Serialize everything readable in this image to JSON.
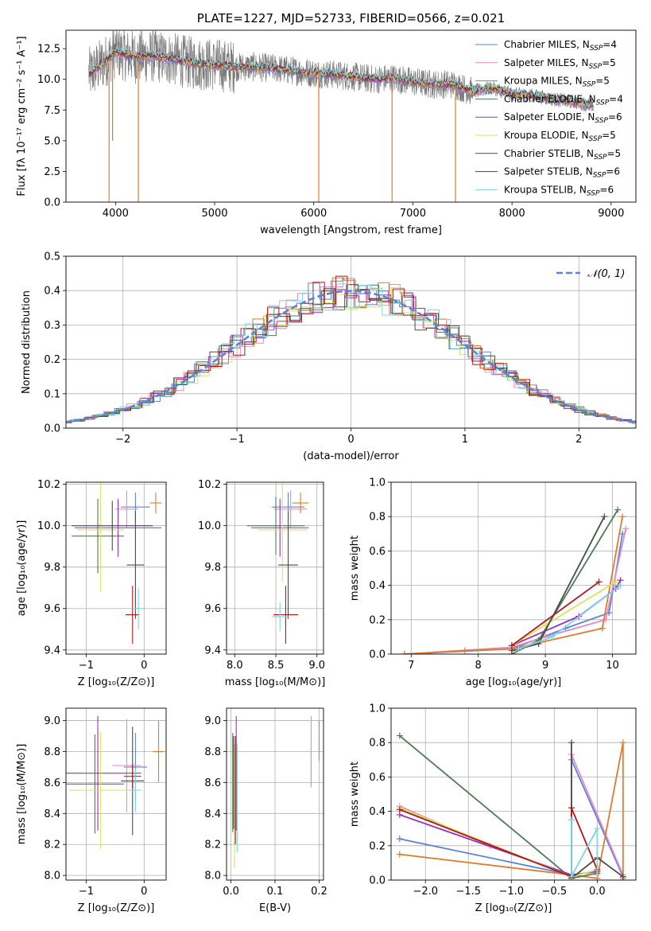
{
  "chart_data": [
    {
      "type": "line",
      "id": "spectrum",
      "title": "PLATE=1227, MJD=52733, FIBERID=0566, z=0.021",
      "xlabel": "wavelength [Angstrom, rest frame]",
      "ylabel": "Flux [fλ 10⁻¹⁷ erg cm⁻² s⁻¹ A⁻¹]",
      "xlim": [
        3500,
        9250
      ],
      "ylim": [
        0,
        14
      ],
      "xticks": [
        4000,
        5000,
        6000,
        7000,
        8000,
        9000
      ],
      "yticks": [
        0.0,
        2.5,
        5.0,
        7.5,
        10.0,
        12.5
      ],
      "legend_position": "top-right",
      "series": [
        {
          "name": "Chabrier MILES, N_SSP=4",
          "color": "#5b84d6"
        },
        {
          "name": "Salpeter MILES, N_SSP=5",
          "color": "#e58ac7"
        },
        {
          "name": "Kroupa MILES, N_SSP=5",
          "color": "#b5862c"
        },
        {
          "name": "Chabrier ELODIE, N_SSP=4",
          "color": "#4f7a56"
        },
        {
          "name": "Salpeter ELODIE, N_SSP=6",
          "color": "#9a2fc0"
        },
        {
          "name": "Kroupa ELODIE, N_SSP=5",
          "color": "#d9e35a"
        },
        {
          "name": "Chabrier STELIB, N_SSP=5",
          "color": "#4a4a4a"
        },
        {
          "name": "Salpeter STELIB, N_SSP=6",
          "color": "#b01818"
        },
        {
          "name": "Kroupa STELIB, N_SSP=6",
          "color": "#7ad7e0"
        }
      ],
      "observed_color": "#7a7a7a",
      "continuum": {
        "x": [
          3750,
          3900,
          4000,
          4100,
          4200,
          4400,
          4600,
          4800,
          5000,
          5200,
          5400,
          5600,
          5800,
          6000,
          6200,
          6400,
          6600,
          6800,
          7000,
          7200,
          7400,
          7600,
          7800,
          8000,
          8200,
          8400,
          8600,
          8800
        ],
        "y": [
          10.5,
          11.5,
          12.3,
          12.0,
          11.8,
          11.9,
          11.6,
          11.3,
          11.2,
          11.0,
          11.0,
          10.9,
          10.7,
          10.5,
          10.4,
          10.2,
          10.0,
          10.1,
          9.8,
          9.6,
          9.6,
          9.0,
          9.3,
          8.8,
          8.7,
          8.4,
          8.2,
          7.9
        ]
      },
      "absorption_features": [
        {
          "x": 3935,
          "y": 0.0
        },
        {
          "x": 3970,
          "y": 5.0
        },
        {
          "x": 4230,
          "y": 0.0
        },
        {
          "x": 6050,
          "y": 0.0
        },
        {
          "x": 6790,
          "y": 0.0
        },
        {
          "x": 7430,
          "y": 0.0
        }
      ]
    },
    {
      "type": "histogram",
      "id": "residuals",
      "xlabel": "(data-model)/error",
      "ylabel": "Normed distribution",
      "xlim": [
        -2.5,
        2.5
      ],
      "ylim": [
        0,
        0.5
      ],
      "xticks": [
        -2,
        -1,
        0,
        1,
        2
      ],
      "yticks": [
        0.0,
        0.1,
        0.2,
        0.3,
        0.4,
        0.5
      ],
      "legend": "𝒩(0, 1)",
      "legend_position": "top-right",
      "reference": {
        "name": "N(0,1)",
        "color": "#5b84d6",
        "mean": 0,
        "sigma": 1
      },
      "bin_width": 0.1,
      "series_colors": [
        "#5b84d6",
        "#e58ac7",
        "#e07b2e",
        "#4f7a56",
        "#9a2fc0",
        "#d9e35a",
        "#4a4a4a",
        "#b01818",
        "#7ad7e0"
      ]
    },
    {
      "type": "scatter",
      "id": "age-vs-Z",
      "xlabel": "Z [log₁₀(Z/Z⊙)]",
      "ylabel": "age  [log₁₀(age/yr)]",
      "xlim": [
        -1.35,
        0.38
      ],
      "ylim": [
        9.38,
        10.21
      ],
      "xticks": [
        -1,
        0
      ],
      "yticks": [
        9.4,
        9.6,
        9.8,
        10.0,
        10.2
      ],
      "points": [
        {
          "x": -0.15,
          "y": 10.09,
          "xerr": 0.25,
          "yerr": 0.07,
          "color": "#5b84d6"
        },
        {
          "x": -0.3,
          "y": 10.08,
          "xerr": 0.2,
          "yerr": 0.09,
          "color": "#e58ac7"
        },
        {
          "x": 0.2,
          "y": 10.11,
          "xerr": 0.1,
          "yerr": 0.05,
          "color": "#e07b2e"
        },
        {
          "x": -0.8,
          "y": 9.95,
          "xerr": 0.45,
          "yerr": 0.18,
          "color": "#4f7a56"
        },
        {
          "x": -0.45,
          "y": 9.99,
          "xerr": 0.75,
          "yerr": 0.14,
          "color": "#9a2fc0"
        },
        {
          "x": -0.75,
          "y": 9.98,
          "xerr": 0.4,
          "yerr": 0.3,
          "color": "#d9e35a"
        },
        {
          "x": -0.55,
          "y": 10.0,
          "xerr": 0.7,
          "yerr": 0.12,
          "color": "#4a4a4a"
        },
        {
          "x": -0.15,
          "y": 9.81,
          "xerr": 0.15,
          "yerr": 0.26,
          "color": "#4a4a4a"
        },
        {
          "x": -0.2,
          "y": 9.57,
          "xerr": 0.12,
          "yerr": 0.14,
          "color": "#b01818"
        },
        {
          "x": -0.1,
          "y": 9.6,
          "xerr": 0.1,
          "yerr": 0.1,
          "color": "#7ad7e0"
        }
      ]
    },
    {
      "type": "scatter",
      "id": "age-vs-mass",
      "xlabel": "mass [log₁₀(M/M⊙)]",
      "ylabel": "",
      "xlim": [
        7.9,
        9.08
      ],
      "ylim": [
        9.38,
        10.21
      ],
      "xticks": [
        8.0,
        8.5,
        9.0
      ],
      "yticks": [
        9.4,
        9.6,
        9.8,
        10.0,
        10.2
      ],
      "points": [
        {
          "x": 8.65,
          "y": 10.09,
          "xerr": 0.2,
          "yerr": 0.07,
          "color": "#5b84d6"
        },
        {
          "x": 8.68,
          "y": 10.08,
          "xerr": 0.2,
          "yerr": 0.09,
          "color": "#e58ac7"
        },
        {
          "x": 8.8,
          "y": 10.11,
          "xerr": 0.1,
          "yerr": 0.05,
          "color": "#e07b2e"
        },
        {
          "x": 8.5,
          "y": 10.0,
          "xerr": 0.35,
          "yerr": 0.14,
          "color": "#4f7a56"
        },
        {
          "x": 8.55,
          "y": 9.99,
          "xerr": 0.35,
          "yerr": 0.14,
          "color": "#9a2fc0"
        },
        {
          "x": 8.58,
          "y": 9.98,
          "xerr": 0.3,
          "yerr": 0.25,
          "color": "#d9e35a"
        },
        {
          "x": 8.65,
          "y": 9.81,
          "xerr": 0.12,
          "yerr": 0.26,
          "color": "#4a4a4a"
        },
        {
          "x": 8.62,
          "y": 9.57,
          "xerr": 0.15,
          "yerr": 0.14,
          "color": "#b01818"
        },
        {
          "x": 8.55,
          "y": 9.56,
          "xerr": 0.1,
          "yerr": 0.07,
          "color": "#7ad7e0"
        }
      ]
    },
    {
      "type": "line",
      "id": "weight-vs-age",
      "xlabel": "age  [log₁₀(age/yr)]",
      "ylabel": "mass weight",
      "xlim": [
        6.7,
        10.35
      ],
      "ylim": [
        0,
        1.0
      ],
      "xticks": [
        7,
        8,
        9,
        10
      ],
      "yticks": [
        0.0,
        0.2,
        0.4,
        0.6,
        0.8,
        1.0
      ],
      "series": [
        {
          "color": "#5b84d6",
          "x": [
            6.9,
            8.5,
            9.3,
            9.95,
            10.15
          ],
          "y": [
            0.0,
            0.03,
            0.15,
            0.24,
            0.7
          ]
        },
        {
          "color": "#e58ac7",
          "x": [
            6.9,
            8.5,
            9.0,
            9.9,
            10.2
          ],
          "y": [
            0.0,
            0.04,
            0.1,
            0.2,
            0.73
          ]
        },
        {
          "color": "#e07b2e",
          "x": [
            6.9,
            7.8,
            8.5,
            9.85,
            10.15
          ],
          "y": [
            0.0,
            0.02,
            0.03,
            0.15,
            0.8
          ]
        },
        {
          "color": "#4f7a56",
          "x": [
            8.5,
            8.9,
            10.08
          ],
          "y": [
            0.0,
            0.08,
            0.84
          ]
        },
        {
          "color": "#9a2fc0",
          "x": [
            8.5,
            9.5,
            10.05,
            10.12
          ],
          "y": [
            0.05,
            0.22,
            0.38,
            0.43
          ]
        },
        {
          "color": "#d9e35a",
          "x": [
            8.5,
            9.0,
            10.05
          ],
          "y": [
            0.05,
            0.17,
            0.42
          ]
        },
        {
          "color": "#4a4a4a",
          "x": [
            8.5,
            8.9,
            9.88
          ],
          "y": [
            0.02,
            0.06,
            0.8
          ]
        },
        {
          "color": "#b01818",
          "x": [
            8.5,
            9.8
          ],
          "y": [
            0.05,
            0.42
          ]
        },
        {
          "color": "#7ad7e0",
          "x": [
            8.6,
            9.1,
            10.12
          ],
          "y": [
            0.03,
            0.1,
            0.4
          ]
        }
      ]
    },
    {
      "type": "scatter",
      "id": "mass-vs-Z",
      "xlabel": "Z [log₁₀(Z/Z⊙)]",
      "ylabel": "mass [log₁₀(M/M⊙)]",
      "xlim": [
        -1.35,
        0.38
      ],
      "ylim": [
        7.97,
        9.08
      ],
      "xticks": [
        -1,
        0
      ],
      "yticks": [
        8.0,
        8.2,
        8.4,
        8.6,
        8.8,
        9.0
      ],
      "points": [
        {
          "x": -0.15,
          "y": 8.7,
          "xerr": 0.2,
          "yerr": 0.22,
          "color": "#5b84d6"
        },
        {
          "x": -0.3,
          "y": 8.71,
          "xerr": 0.25,
          "yerr": 0.3,
          "color": "#e58ac7"
        },
        {
          "x": 0.25,
          "y": 8.8,
          "xerr": 0.1,
          "yerr": 0.2,
          "color": "#e07b2e"
        },
        {
          "x": -0.85,
          "y": 8.59,
          "xerr": 0.5,
          "yerr": 0.32,
          "color": "#4f7a56"
        },
        {
          "x": -0.8,
          "y": 8.66,
          "xerr": 0.75,
          "yerr": 0.37,
          "color": "#9a2fc0"
        },
        {
          "x": -0.75,
          "y": 8.55,
          "xerr": 0.55,
          "yerr": 0.38,
          "color": "#d9e35a"
        },
        {
          "x": -0.2,
          "y": 8.61,
          "xerr": 0.2,
          "yerr": 0.35,
          "color": "#4a4a4a"
        },
        {
          "x": -0.2,
          "y": 8.64,
          "xerr": 0.15,
          "yerr": 0.08,
          "color": "#b01818"
        },
        {
          "x": -0.15,
          "y": 8.55,
          "xerr": 0.1,
          "yerr": 0.14,
          "color": "#7ad7e0"
        }
      ]
    },
    {
      "type": "scatter",
      "id": "mass-vs-EBV",
      "xlabel": "E(B-V)",
      "ylabel": "",
      "xlim": [
        -0.01,
        0.21
      ],
      "ylim": [
        7.97,
        9.08
      ],
      "xticks": [
        0.0,
        0.1,
        0.2
      ],
      "yticks": [
        8.0,
        8.2,
        8.4,
        8.6,
        8.8,
        9.0
      ],
      "points": [
        {
          "x": 0.182,
          "y": 8.7,
          "yerr": 0.13,
          "color": "#5b84d6"
        },
        {
          "x": 0.182,
          "y": 8.8,
          "yerr": 0.23,
          "color": "#e58ac7"
        },
        {
          "x": 0.2,
          "y": 8.87,
          "yerr": 0.13,
          "color": "#e07b2e"
        },
        {
          "x": 0.004,
          "y": 8.6,
          "yerr": 0.32,
          "color": "#4f7a56"
        },
        {
          "x": 0.012,
          "y": 8.66,
          "yerr": 0.37,
          "color": "#9a2fc0"
        },
        {
          "x": 0.008,
          "y": 8.45,
          "yerr": 0.4,
          "color": "#d9e35a"
        },
        {
          "x": 0.006,
          "y": 8.6,
          "yerr": 0.3,
          "color": "#4a4a4a"
        },
        {
          "x": 0.01,
          "y": 8.55,
          "yerr": 0.35,
          "color": "#b01818"
        },
        {
          "x": 0.014,
          "y": 8.5,
          "yerr": 0.35,
          "color": "#7ad7e0"
        }
      ]
    },
    {
      "type": "line",
      "id": "weight-vs-Z",
      "xlabel": "Z [log₁₀(Z/Z⊙)]",
      "ylabel": "mass weight",
      "xlim": [
        -2.4,
        0.45
      ],
      "ylim": [
        0,
        1.0
      ],
      "xticks": [
        -2.0,
        -1.5,
        -1.0,
        -0.5,
        0.0
      ],
      "yticks": [
        0.0,
        0.2,
        0.4,
        0.6,
        0.8,
        1.0
      ],
      "series": [
        {
          "color": "#5b84d6",
          "x": [
            -2.3,
            -0.3,
            -0.3,
            0.3
          ],
          "y": [
            0.24,
            0.03,
            0.7,
            0.02
          ]
        },
        {
          "color": "#e58ac7",
          "x": [
            -2.3,
            -1.25,
            -0.3,
            -0.3,
            0.3
          ],
          "y": [
            0.43,
            0.2,
            0.03,
            0.73,
            0.03
          ]
        },
        {
          "color": "#e07b2e",
          "x": [
            -2.3,
            -0.3,
            0.0,
            0.3,
            0.3
          ],
          "y": [
            0.15,
            0.03,
            0.01,
            0.8,
            0.01
          ]
        },
        {
          "color": "#4f7a56",
          "x": [
            -2.3,
            -0.3,
            0.0
          ],
          "y": [
            0.84,
            0.01,
            0.04
          ]
        },
        {
          "color": "#9a2fc0",
          "x": [
            -2.3,
            -0.3,
            0.0
          ],
          "y": [
            0.38,
            0.03,
            0.05
          ]
        },
        {
          "color": "#d9e35a",
          "x": [
            -2.3,
            -0.3,
            0.0
          ],
          "y": [
            0.42,
            0.02,
            0.06
          ]
        },
        {
          "color": "#4a4a4a",
          "x": [
            -0.3,
            -0.3,
            0.0,
            0.3
          ],
          "y": [
            0.8,
            0.01,
            0.13,
            0.02
          ]
        },
        {
          "color": "#b01818",
          "x": [
            -2.3,
            -0.3,
            -0.3,
            0.0
          ],
          "y": [
            0.41,
            0.02,
            0.42,
            0.06
          ]
        },
        {
          "color": "#7ad7e0",
          "x": [
            -0.3,
            -0.3,
            0.0,
            0.0
          ],
          "y": [
            0.35,
            0.02,
            0.3,
            0.03
          ]
        }
      ]
    }
  ]
}
